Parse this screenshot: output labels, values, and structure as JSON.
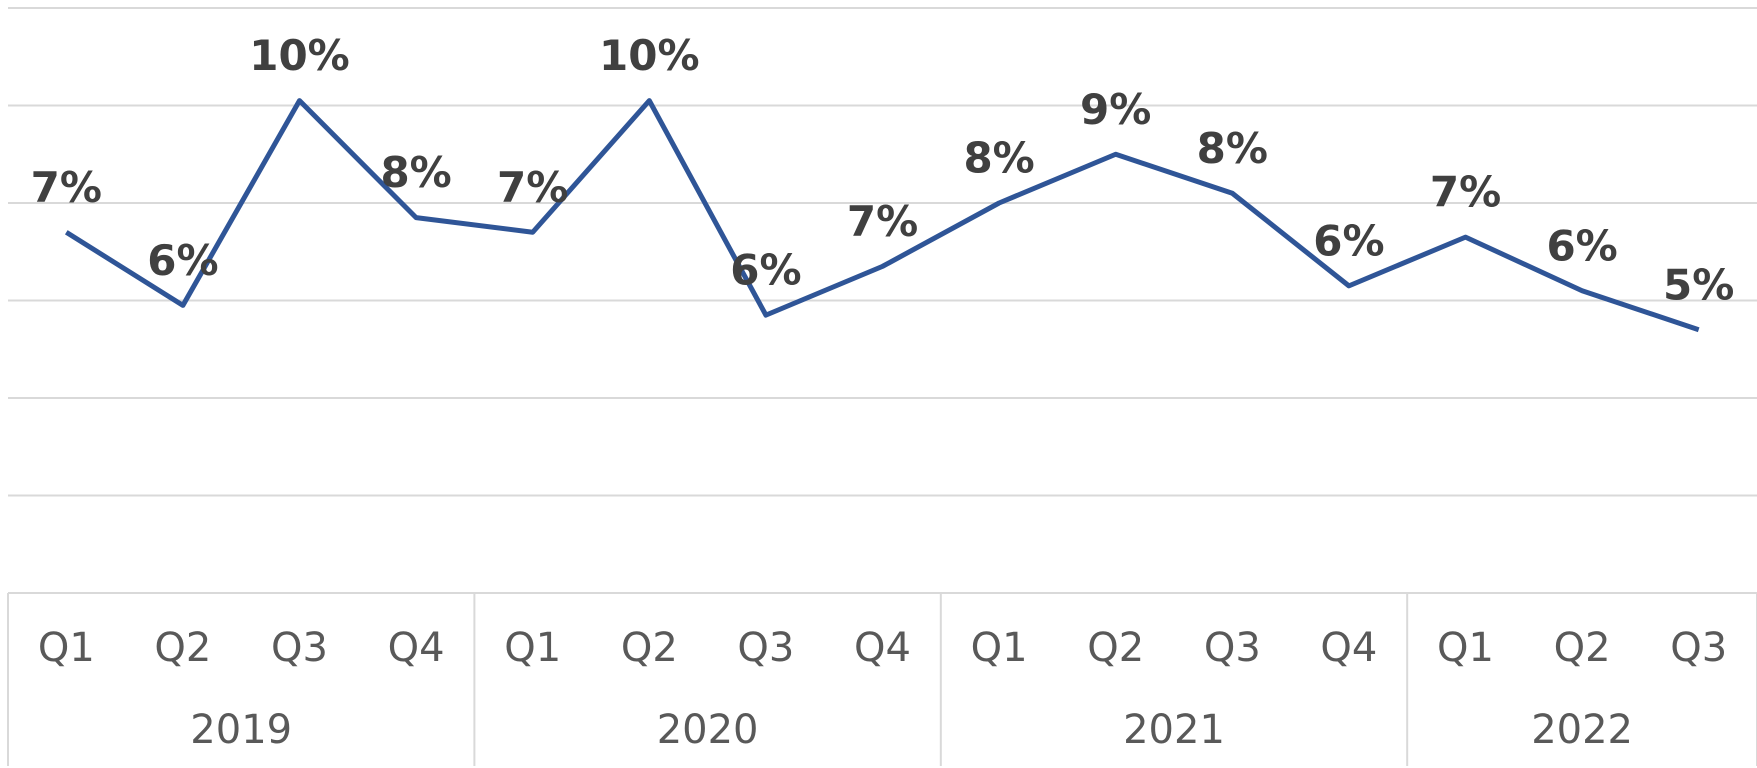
{
  "chart_data": {
    "type": "line",
    "groups": [
      {
        "label": "2019",
        "categories": [
          "Q1",
          "Q2",
          "Q3",
          "Q4"
        ]
      },
      {
        "label": "2020",
        "categories": [
          "Q1",
          "Q2",
          "Q3",
          "Q4"
        ]
      },
      {
        "label": "2021",
        "categories": [
          "Q1",
          "Q2",
          "Q3",
          "Q4"
        ]
      },
      {
        "label": "2022",
        "categories": [
          "Q1",
          "Q2",
          "Q3"
        ]
      }
    ],
    "values": [
      7.4,
      5.9,
      10.1,
      7.7,
      7.4,
      10.1,
      5.7,
      6.7,
      8.0,
      9.0,
      8.2,
      6.3,
      7.3,
      6.2,
      5.4
    ],
    "value_labels": [
      "7%",
      "6%",
      "10%",
      "8%",
      "7%",
      "10%",
      "6%",
      "7%",
      "8%",
      "9%",
      "8%",
      "6%",
      "7%",
      "6%",
      "5%"
    ],
    "color": "#2f5597",
    "ylim": [
      0,
      12
    ],
    "yticks": [
      0,
      2,
      4,
      6,
      8,
      10,
      12
    ],
    "grid": true
  }
}
